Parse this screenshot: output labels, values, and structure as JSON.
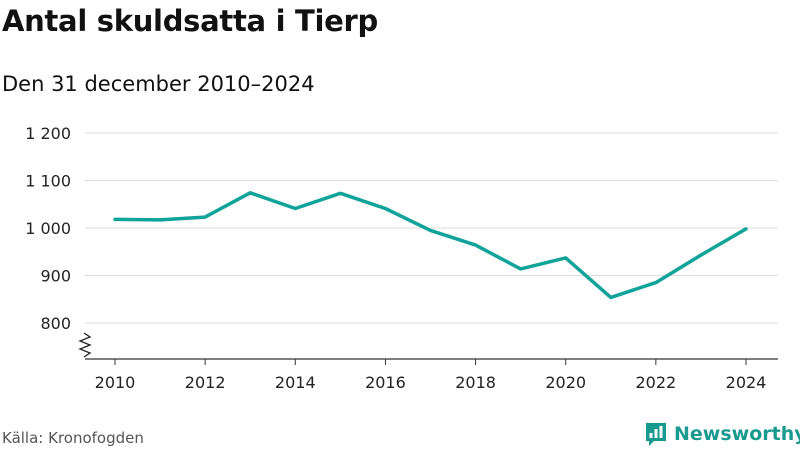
{
  "header": {
    "title": "Antal skuldsatta i Tierp",
    "subtitle": "Den 31 december 2010–2024"
  },
  "footer": {
    "source": "Källa: Kronofogden",
    "brand": "Newsworthy"
  },
  "colors": {
    "line": "#10a39a",
    "grid": "#dddddd",
    "axis": "#333333",
    "brand": "#1a9a8f"
  },
  "chart_data": {
    "type": "line",
    "title": "Antal skuldsatta i Tierp",
    "subtitle": "Den 31 december 2010–2024",
    "xlabel": "",
    "ylabel": "",
    "x": [
      2010,
      2011,
      2012,
      2013,
      2014,
      2015,
      2016,
      2017,
      2018,
      2019,
      2020,
      2021,
      2022,
      2023,
      2024
    ],
    "series": [
      {
        "name": "Antal skuldsatta",
        "values": [
          1018,
          1017,
          1023,
          1074,
          1041,
          1073,
          1041,
          995,
          964,
          914,
          937,
          854,
          885,
          943,
          998
        ]
      }
    ],
    "ylim": [
      800,
      1200
    ],
    "y_ticks": [
      800,
      900,
      1000,
      1100,
      1200
    ],
    "y_tick_labels": [
      "800",
      "900",
      "1 000",
      "1 100",
      "1 200"
    ],
    "x_ticks": [
      2010,
      2012,
      2014,
      2016,
      2018,
      2020,
      2022,
      2024
    ],
    "x_tick_labels": [
      "2010",
      "2012",
      "2014",
      "2016",
      "2018",
      "2020",
      "2022",
      "2024"
    ],
    "y_axis_break": true,
    "grid": true,
    "legend": "none"
  }
}
